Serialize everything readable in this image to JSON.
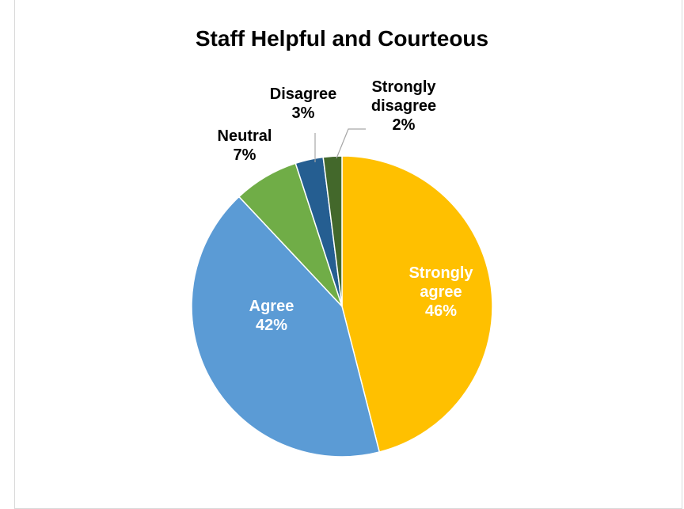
{
  "chart_data": {
    "type": "pie",
    "title": "Staff Helpful and Courteous",
    "slices": [
      {
        "label": "Strongly agree",
        "value": 46,
        "value_label": "46%",
        "color": "#FFC000",
        "lines": [
          "Strongly",
          "agree",
          "46%"
        ]
      },
      {
        "label": "Agree",
        "value": 42,
        "value_label": "42%",
        "color": "#5B9BD5",
        "lines": [
          "Agree",
          "42%"
        ]
      },
      {
        "label": "Neutral",
        "value": 7,
        "value_label": "7%",
        "color": "#70AD47",
        "lines": [
          "Neutral",
          "7%"
        ]
      },
      {
        "label": "Disagree",
        "value": 3,
        "value_label": "3%",
        "color": "#255E91",
        "lines": [
          "Disagree",
          "3%"
        ]
      },
      {
        "label": "Strongly disagree",
        "value": 2,
        "value_label": "2%",
        "color": "#43682B",
        "lines": [
          "Strongly",
          "disagree",
          "2%"
        ]
      }
    ],
    "legend": "none",
    "data_labels": "category and percentage"
  }
}
